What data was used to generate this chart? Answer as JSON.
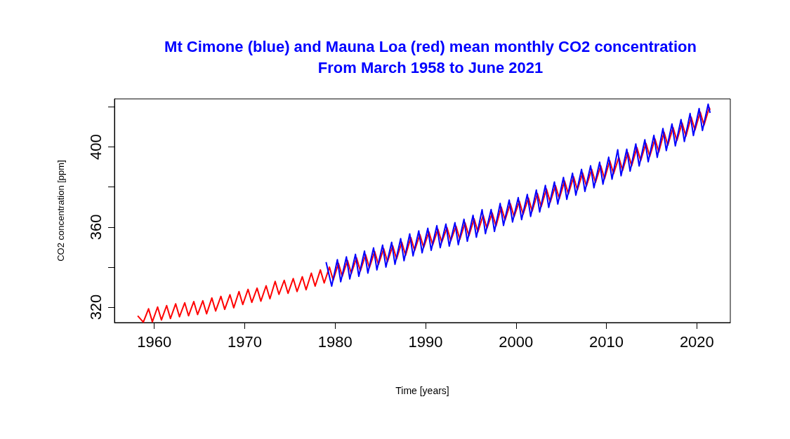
{
  "chart_data": {
    "type": "line",
    "title": "Mt Cimone (blue) and Mauna Loa (red) mean monthly CO2 concentration",
    "subtitle": "From March 1958 to June 2021",
    "xlabel": "Time [years]",
    "ylabel": "CO2 concentration [ppm]",
    "xlim": [
      1955.6,
      2023.7
    ],
    "xticks": [
      1960,
      1970,
      1980,
      1990,
      2000,
      2010,
      2020
    ],
    "ylim": [
      312.3,
      424
    ],
    "yticks": [
      320,
      {
        "value": 340,
        "label": null
      },
      360,
      {
        "value": 380,
        "label": null
      },
      400,
      {
        "value": 420,
        "label": null
      }
    ],
    "grid": false,
    "marker": "none",
    "line_style": "solid",
    "series": [
      {
        "color": "#ff0000",
        "x": [
          1958.17,
          1958.79,
          1959.37,
          1959.79,
          1960.37,
          1960.79,
          1961.37,
          1961.79,
          1962.37,
          1962.79,
          1963.37,
          1963.79,
          1964.37,
          1964.79,
          1965.37,
          1965.79,
          1966.37,
          1966.79,
          1967.37,
          1967.79,
          1968.37,
          1968.79,
          1969.37,
          1969.79,
          1970.37,
          1970.79,
          1971.37,
          1971.79,
          1972.37,
          1972.79,
          1973.37,
          1973.79,
          1974.37,
          1974.79,
          1975.37,
          1975.79,
          1976.37,
          1976.79,
          1977.37,
          1977.79,
          1978.37,
          1978.79,
          1979.37,
          1979.79,
          1980.37,
          1980.79,
          1981.37,
          1981.79,
          1982.37,
          1982.79,
          1983.37,
          1983.79,
          1984.37,
          1984.79,
          1985.37,
          1985.79,
          1986.37,
          1986.79,
          1987.37,
          1987.79,
          1988.37,
          1988.79,
          1989.37,
          1989.79,
          1990.37,
          1990.79,
          1991.37,
          1991.79,
          1992.37,
          1992.79,
          1993.37,
          1993.79,
          1994.37,
          1994.79,
          1995.37,
          1995.79,
          1996.37,
          1996.79,
          1997.37,
          1997.79,
          1998.37,
          1998.79,
          1999.37,
          1999.79,
          2000.37,
          2000.79,
          2001.37,
          2001.79,
          2002.37,
          2002.79,
          2003.37,
          2003.79,
          2004.37,
          2004.79,
          2005.37,
          2005.79,
          2006.37,
          2006.79,
          2007.37,
          2007.79,
          2008.37,
          2008.79,
          2009.37,
          2009.79,
          2010.37,
          2010.79,
          2011.37,
          2011.79,
          2012.37,
          2012.79,
          2013.37,
          2013.79,
          2014.37,
          2014.79,
          2015.37,
          2015.79,
          2016.37,
          2016.79,
          2017.37,
          2017.79,
          2018.37,
          2018.79,
          2019.37,
          2019.79,
          2020.37,
          2020.79,
          2021.37,
          2021.46
        ],
        "values": [
          315.7,
          312.5,
          319.2,
          312.7,
          320.1,
          313.6,
          320.8,
          314.3,
          321.7,
          315.2,
          322.2,
          315.7,
          322.8,
          316.3,
          323.2,
          316.7,
          324.6,
          318.1,
          325.4,
          318.9,
          326.2,
          319.7,
          327.8,
          321.3,
          328.9,
          322.4,
          329.5,
          323.0,
          330.7,
          324.2,
          332.9,
          326.4,
          333.4,
          326.9,
          334.3,
          327.8,
          335.2,
          328.7,
          337.0,
          330.5,
          338.6,
          332.1,
          340.0,
          333.5,
          341.9,
          335.4,
          343.3,
          336.8,
          344.6,
          338.1,
          346.2,
          339.7,
          347.8,
          341.3,
          349.2,
          342.7,
          350.6,
          344.1,
          352.4,
          345.9,
          354.8,
          348.3,
          356.3,
          349.8,
          357.6,
          351.1,
          358.9,
          352.4,
          359.7,
          353.2,
          360.4,
          353.9,
          362.1,
          355.6,
          364.1,
          357.6,
          365.9,
          359.4,
          367.0,
          360.5,
          370.0,
          363.5,
          371.7,
          365.2,
          372.9,
          366.4,
          374.5,
          368.0,
          376.7,
          370.2,
          379.0,
          372.5,
          380.7,
          374.2,
          383.0,
          376.5,
          385.1,
          378.6,
          387.0,
          380.5,
          388.8,
          382.3,
          390.6,
          384.1,
          393.1,
          386.6,
          394.8,
          388.3,
          397.1,
          390.6,
          399.7,
          393.2,
          401.8,
          395.3,
          404.0,
          397.5,
          407.4,
          400.9,
          409.7,
          403.2,
          411.9,
          405.4,
          414.9,
          408.4,
          417.4,
          410.9,
          419.6,
          418.5
        ]
      },
      {
        "color": "#0000ff",
        "x": [
          1979.0,
          1979.62,
          1980.25,
          1980.62,
          1981.25,
          1981.62,
          1982.25,
          1982.62,
          1983.25,
          1983.62,
          1984.25,
          1984.62,
          1985.25,
          1985.62,
          1986.25,
          1986.62,
          1987.25,
          1987.62,
          1988.25,
          1988.62,
          1989.25,
          1989.62,
          1990.25,
          1990.62,
          1991.25,
          1991.62,
          1992.25,
          1992.62,
          1993.25,
          1993.62,
          1994.25,
          1994.62,
          1995.25,
          1995.62,
          1996.25,
          1996.62,
          1997.25,
          1997.62,
          1998.25,
          1998.62,
          1999.25,
          1999.62,
          2000.25,
          2000.62,
          2001.25,
          2001.62,
          2002.25,
          2002.62,
          2003.25,
          2003.62,
          2004.25,
          2004.62,
          2005.25,
          2005.62,
          2006.25,
          2006.62,
          2007.25,
          2007.62,
          2008.25,
          2008.62,
          2009.25,
          2009.62,
          2010.25,
          2010.62,
          2011.25,
          2011.62,
          2012.25,
          2012.62,
          2013.25,
          2013.62,
          2014.25,
          2014.62,
          2015.25,
          2015.62,
          2016.25,
          2016.62,
          2017.25,
          2017.62,
          2018.25,
          2018.62,
          2019.25,
          2019.62,
          2020.25,
          2020.62,
          2021.25,
          2021.46
        ],
        "values": [
          342.5,
          330.5,
          343.7,
          332.7,
          345.1,
          334.1,
          346.4,
          335.4,
          348.0,
          337.0,
          349.6,
          338.6,
          351.0,
          340.0,
          352.4,
          341.4,
          354.2,
          343.2,
          356.6,
          345.6,
          358.1,
          347.1,
          359.4,
          348.4,
          360.7,
          349.7,
          361.5,
          350.5,
          362.2,
          351.2,
          363.9,
          352.9,
          365.9,
          354.9,
          368.7,
          356.7,
          368.8,
          357.8,
          371.8,
          360.8,
          373.5,
          362.5,
          374.7,
          363.7,
          376.3,
          365.3,
          378.5,
          367.5,
          380.8,
          369.8,
          382.5,
          371.5,
          384.8,
          373.8,
          386.9,
          375.9,
          388.8,
          377.8,
          390.6,
          379.6,
          392.4,
          381.4,
          394.9,
          383.9,
          398.6,
          385.6,
          398.9,
          387.9,
          401.5,
          390.5,
          403.6,
          392.6,
          405.8,
          394.8,
          409.2,
          398.2,
          411.5,
          400.5,
          413.7,
          402.7,
          416.7,
          405.7,
          419.2,
          408.2,
          421.4,
          417.0
        ]
      }
    ]
  }
}
